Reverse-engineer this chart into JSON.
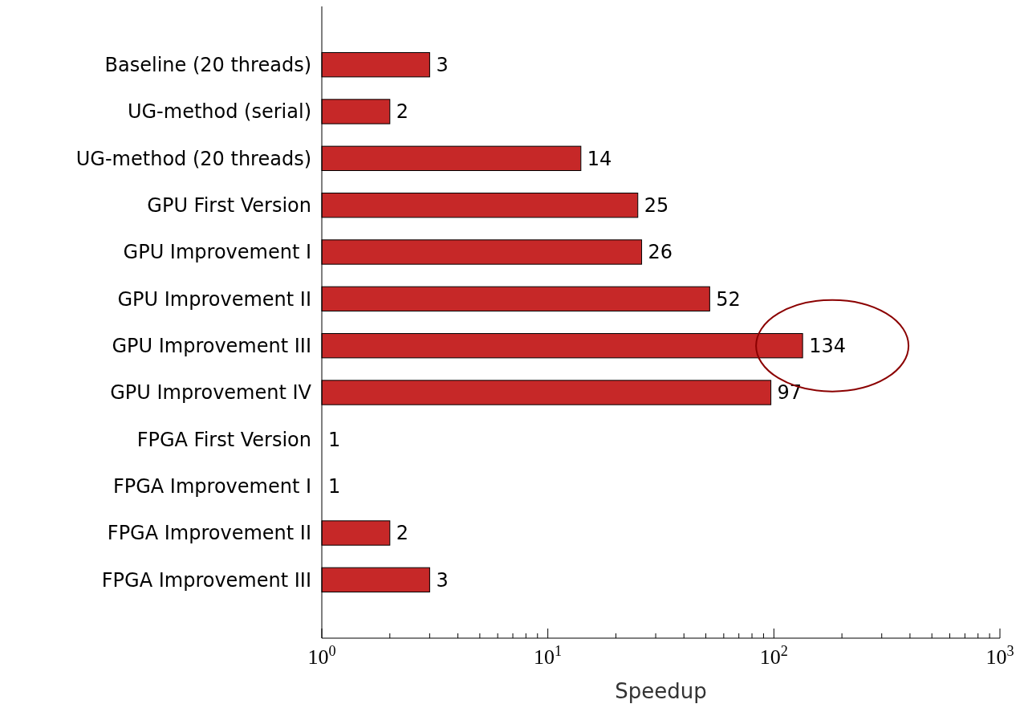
{
  "chart_data": {
    "type": "bar",
    "orientation": "horizontal",
    "xlabel": "Speedup",
    "categories": [
      "Baseline (20 threads)",
      "UG-method (serial)",
      "UG-method (20 threads)",
      "GPU First Version",
      "GPU Improvement I",
      "GPU Improvement II",
      "GPU Improvement III",
      "GPU Improvement IV",
      "FPGA First Version",
      "FPGA Improvement I",
      "FPGA Improvement II",
      "FPGA Improvement III"
    ],
    "values": [
      3,
      2,
      14,
      25,
      26,
      52,
      134,
      97,
      1,
      1,
      2,
      3
    ],
    "color": "#c62828",
    "data_labels": true,
    "log": "x",
    "xlim": [
      1,
      1000
    ],
    "xticks": [
      {
        "value": 1,
        "label": "10$^{0}$"
      },
      {
        "value": 2,
        "label": null
      },
      {
        "value": 3,
        "label": null
      },
      {
        "value": 4,
        "label": null
      },
      {
        "value": 5,
        "label": null
      },
      {
        "value": 6,
        "label": null
      },
      {
        "value": 7,
        "label": null
      },
      {
        "value": 8,
        "label": null
      },
      {
        "value": 9,
        "label": null
      },
      {
        "value": 10,
        "label": "10$^{1}$"
      },
      {
        "value": 20,
        "label": null
      },
      {
        "value": 30,
        "label": null
      },
      {
        "value": 40,
        "label": null
      },
      {
        "value": 50,
        "label": null
      },
      {
        "value": 60,
        "label": null
      },
      {
        "value": 70,
        "label": null
      },
      {
        "value": 80,
        "label": null
      },
      {
        "value": 90,
        "label": null
      },
      {
        "value": 100,
        "label": "10$^{2}$"
      },
      {
        "value": 200,
        "label": null
      },
      {
        "value": 300,
        "label": null
      },
      {
        "value": 400,
        "label": null
      },
      {
        "value": 500,
        "label": null
      },
      {
        "value": 600,
        "label": null
      },
      {
        "value": 700,
        "label": null
      },
      {
        "value": 800,
        "label": null
      },
      {
        "value": 900,
        "label": null
      },
      {
        "value": 1000,
        "label": "10$^{3}$"
      }
    ],
    "tick_labels": "xy"
  }
}
